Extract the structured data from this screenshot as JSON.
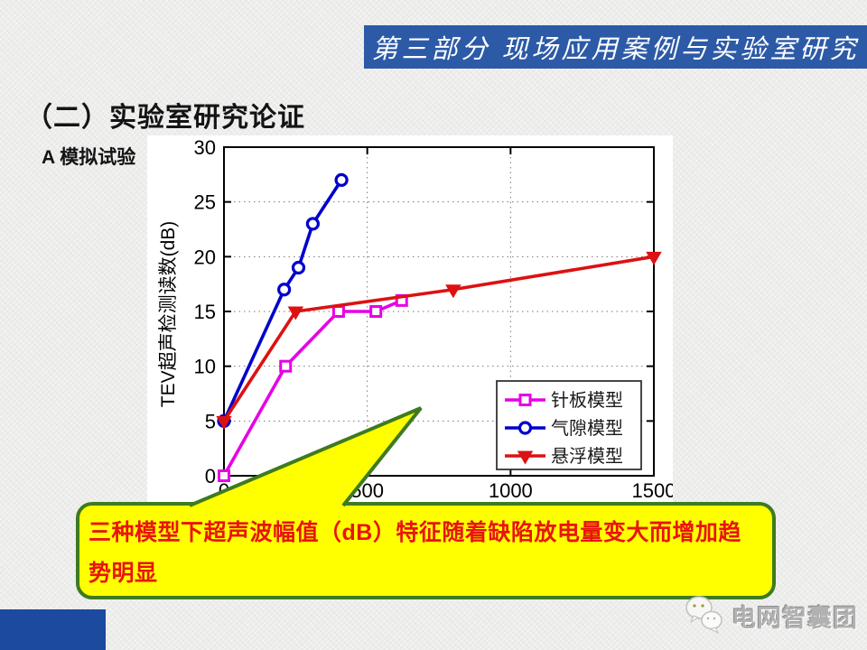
{
  "banner": {
    "title": "第三部分  现场应用案例与实验室研究",
    "bg_color": "#2c5aa7",
    "text_color": "#ffffff"
  },
  "heading": "（二）实验室研究论证",
  "subheading": "A 模拟试验",
  "callout": {
    "text": "三种模型下超声波幅值（dB）特征随着缺陷放电量变大而增加趋势明显",
    "bg_color": "#ffff00",
    "border_color": "#3e7a1f",
    "text_color": "#e8150d"
  },
  "footer": {
    "brand": "电网智囊团",
    "icon": "wechat-icon"
  },
  "accent_bar_color": "#1b4a9e",
  "chart_data": {
    "type": "line",
    "title": "",
    "xlabel": "",
    "ylabel": "TEV超声检测读数(dB)",
    "xlim": [
      0,
      1500
    ],
    "ylim": [
      0,
      30
    ],
    "xticks": [
      0,
      500,
      1000,
      1500
    ],
    "yticks": [
      0,
      5,
      10,
      15,
      20,
      25,
      30
    ],
    "grid": true,
    "legend_position": "lower-right",
    "series": [
      {
        "name": "针板模型",
        "color": "#e600e6",
        "marker": "square",
        "x": [
          0,
          215,
          400,
          530,
          620
        ],
        "y": [
          0,
          10,
          15,
          15,
          16
        ]
      },
      {
        "name": "气隙模型",
        "color": "#0000cd",
        "marker": "circle",
        "x": [
          0,
          210,
          260,
          310,
          410
        ],
        "y": [
          5,
          17,
          19,
          23,
          27
        ]
      },
      {
        "name": "悬浮模型",
        "color": "#dd1111",
        "marker": "triangle-down",
        "x": [
          0,
          250,
          800,
          1500
        ],
        "y": [
          5,
          15,
          17,
          20
        ]
      }
    ]
  }
}
